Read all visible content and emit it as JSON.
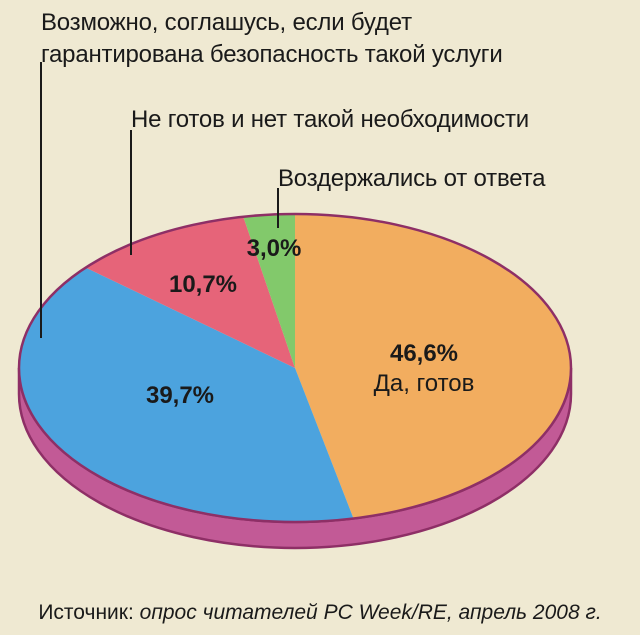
{
  "chart_data": {
    "type": "pie",
    "title": "",
    "slices": [
      {
        "label": "Да, готов",
        "percent_label": "46,6%",
        "value": 46.6,
        "color": "#f2ad5f"
      },
      {
        "label": "Возможно, соглашусь, если будет гарантирована безопасность такой услуги",
        "percent_label": "39,7%",
        "value": 39.7,
        "color": "#4ca3de"
      },
      {
        "label": "Не готов и нет такой необходимости",
        "percent_label": "10,7%",
        "value": 10.7,
        "color": "#e66479"
      },
      {
        "label": "Воздержались от ответа",
        "percent_label": "3,0%",
        "value": 3.0,
        "color": "#82c96b"
      }
    ],
    "rim_color": "#c25a96",
    "outline_color": "#8e2f66"
  },
  "callouts": {
    "maybe_line1": "Возможно, соглашусь, если будет",
    "maybe_line2": "гарантирована безопасность такой услуги",
    "not_ready": "Не готов и нет такой необходимости",
    "abstained": "Воздержались от ответа"
  },
  "source": {
    "prefix": "Источник: ",
    "detail": "опрос читателей PC Week/RE, апрель 2008 г."
  }
}
